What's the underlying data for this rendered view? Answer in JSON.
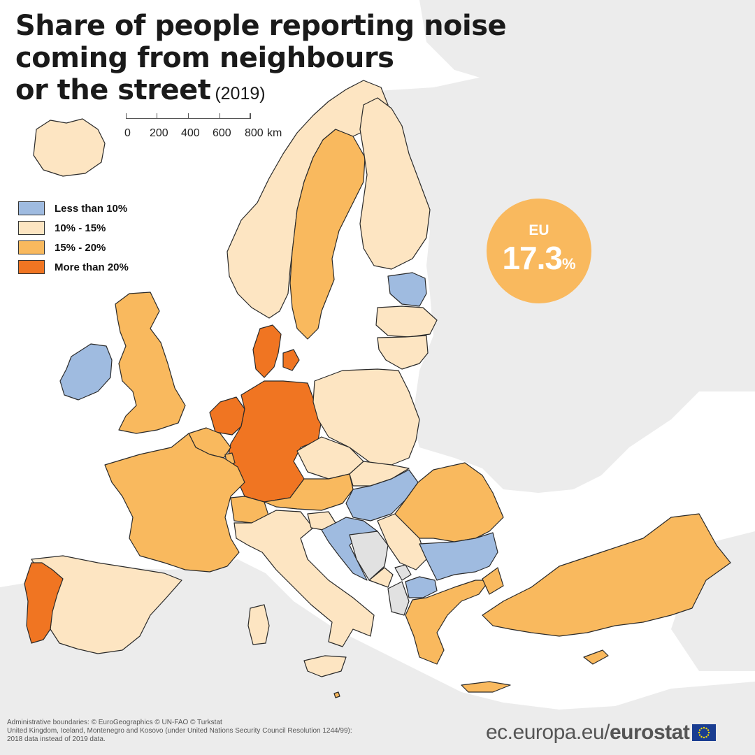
{
  "title": {
    "line1": "Share of people reporting noise",
    "line2": "coming from neighbours",
    "line3": "or the street",
    "year": "(2019)"
  },
  "scale": {
    "labels": [
      "0",
      "200",
      "400",
      "600",
      "800"
    ],
    "unit": "km"
  },
  "legend": [
    {
      "label": "Less than 10%",
      "color": "#9fbbe0"
    },
    {
      "label": "10% - 15%",
      "color": "#fde5c2"
    },
    {
      "label": "15% - 20%",
      "color": "#f9b95e"
    },
    {
      "label": "More than 20%",
      "color": "#f07522"
    }
  ],
  "map_colors": {
    "no_data": "#e1e1e1",
    "non_reporting": "#ececec",
    "sea": "#ffffff",
    "border": "#2a2a2a"
  },
  "eu_average": {
    "label": "EU",
    "value": "17.3",
    "unit": "%"
  },
  "countries": [
    {
      "name": "Iceland",
      "class": "10% - 15%"
    },
    {
      "name": "Norway",
      "class": "10% - 15%"
    },
    {
      "name": "Sweden",
      "class": "15% - 20%"
    },
    {
      "name": "Finland",
      "class": "10% - 15%"
    },
    {
      "name": "Estonia",
      "class": "Less than 10%"
    },
    {
      "name": "Latvia",
      "class": "10% - 15%"
    },
    {
      "name": "Lithuania",
      "class": "10% - 15%"
    },
    {
      "name": "Ireland",
      "class": "Less than 10%"
    },
    {
      "name": "United Kingdom",
      "class": "15% - 20%"
    },
    {
      "name": "Denmark",
      "class": "More than 20%"
    },
    {
      "name": "Netherlands",
      "class": "More than 20%"
    },
    {
      "name": "Germany",
      "class": "More than 20%"
    },
    {
      "name": "Belgium",
      "class": "15% - 20%"
    },
    {
      "name": "Luxembourg",
      "class": "15% - 20%"
    },
    {
      "name": "France",
      "class": "15% - 20%"
    },
    {
      "name": "Spain",
      "class": "10% - 15%"
    },
    {
      "name": "Portugal",
      "class": "More than 20%"
    },
    {
      "name": "Poland",
      "class": "10% - 15%"
    },
    {
      "name": "Czechia",
      "class": "10% - 15%"
    },
    {
      "name": "Slovakia",
      "class": "10% - 15%"
    },
    {
      "name": "Austria",
      "class": "15% - 20%"
    },
    {
      "name": "Switzerland",
      "class": "15% - 20%"
    },
    {
      "name": "Italy",
      "class": "10% - 15%"
    },
    {
      "name": "Slovenia",
      "class": "10% - 15%"
    },
    {
      "name": "Hungary",
      "class": "Less than 10%"
    },
    {
      "name": "Croatia",
      "class": "Less than 10%"
    },
    {
      "name": "Bosnia and Herzegovina",
      "class": "no data"
    },
    {
      "name": "Serbia",
      "class": "10% - 15%"
    },
    {
      "name": "Montenegro",
      "class": "10% - 15%"
    },
    {
      "name": "Kosovo",
      "class": "no data"
    },
    {
      "name": "Albania",
      "class": "no data"
    },
    {
      "name": "North Macedonia",
      "class": "Less than 10%"
    },
    {
      "name": "Romania",
      "class": "15% - 20%"
    },
    {
      "name": "Bulgaria",
      "class": "Less than 10%"
    },
    {
      "name": "Greece",
      "class": "15% - 20%"
    },
    {
      "name": "Turkey",
      "class": "15% - 20%"
    },
    {
      "name": "Cyprus",
      "class": "15% - 20%"
    },
    {
      "name": "Malta",
      "class": "15% - 20%"
    }
  ],
  "footer": {
    "line1": "Administrative boundaries: © EuroGeographics © UN-FAO © Turkstat",
    "line2": "United Kingdom, Iceland, Montenegro and Kosovo (under United Nations Security Council Resolution 1244/99):",
    "line3": "2018 data instead of 2019 data."
  },
  "brand": {
    "url": "ec.europa.eu/",
    "name": "eurostat"
  }
}
